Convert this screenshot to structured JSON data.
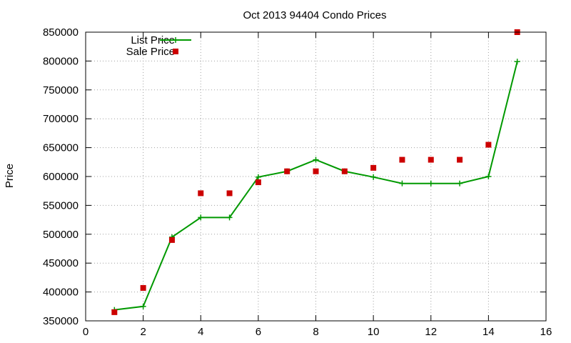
{
  "chart_data": {
    "type": "line",
    "title": "Oct 2013 94404 Condo Prices",
    "xlabel": "",
    "ylabel": "Price",
    "xlim": [
      0,
      16
    ],
    "ylim": [
      350000,
      850000
    ],
    "x_ticks": [
      0,
      2,
      4,
      6,
      8,
      10,
      12,
      14,
      16
    ],
    "y_ticks": [
      350000,
      400000,
      450000,
      500000,
      550000,
      600000,
      650000,
      700000,
      750000,
      800000,
      850000
    ],
    "grid": true,
    "legend_position": "top-left",
    "series": [
      {
        "name": "List Price",
        "style": "line-with-plus-markers",
        "color": "#009900",
        "x": [
          1,
          2,
          3,
          4,
          5,
          6,
          7,
          8,
          9,
          10,
          11,
          12,
          13,
          14,
          15
        ],
        "values": [
          369000,
          375000,
          495000,
          529000,
          529000,
          599000,
          609000,
          629000,
          609000,
          599000,
          588000,
          588000,
          588000,
          600000,
          799000
        ]
      },
      {
        "name": "Sale Price",
        "style": "square-markers",
        "color": "#cc0000",
        "x": [
          1,
          2,
          3,
          4,
          5,
          6,
          7,
          8,
          9,
          10,
          11,
          12,
          13,
          14,
          15
        ],
        "values": [
          365000,
          407000,
          490000,
          571000,
          571000,
          590000,
          609000,
          609000,
          609000,
          615000,
          629000,
          629000,
          629000,
          655000,
          850000
        ]
      }
    ]
  }
}
